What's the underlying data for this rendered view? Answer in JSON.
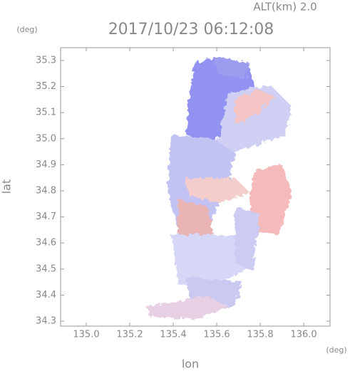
{
  "chart_data": {
    "type": "radar",
    "title": "2017/10/23 06:12:08",
    "annotation": "ALT(km) 2.0",
    "ylabel": "lat",
    "xlabel": "lon",
    "yunit": "(deg)",
    "xunit": "(deg)",
    "xlim": [
      134.882,
      136.121
    ],
    "ylim": [
      34.281,
      35.349
    ],
    "xticks": [
      {
        "value": 135.0,
        "label": "135.0"
      },
      135.2,
      135.4,
      135.6,
      135.8,
      {
        "value": 136.0,
        "label": "136.0"
      }
    ],
    "yticks": [
      34.3,
      34.4,
      34.5,
      34.6,
      34.7,
      34.8,
      34.9,
      {
        "value": 35.0,
        "label": "35.0"
      },
      35.1,
      35.2,
      35.3
    ],
    "grid": false
  }
}
